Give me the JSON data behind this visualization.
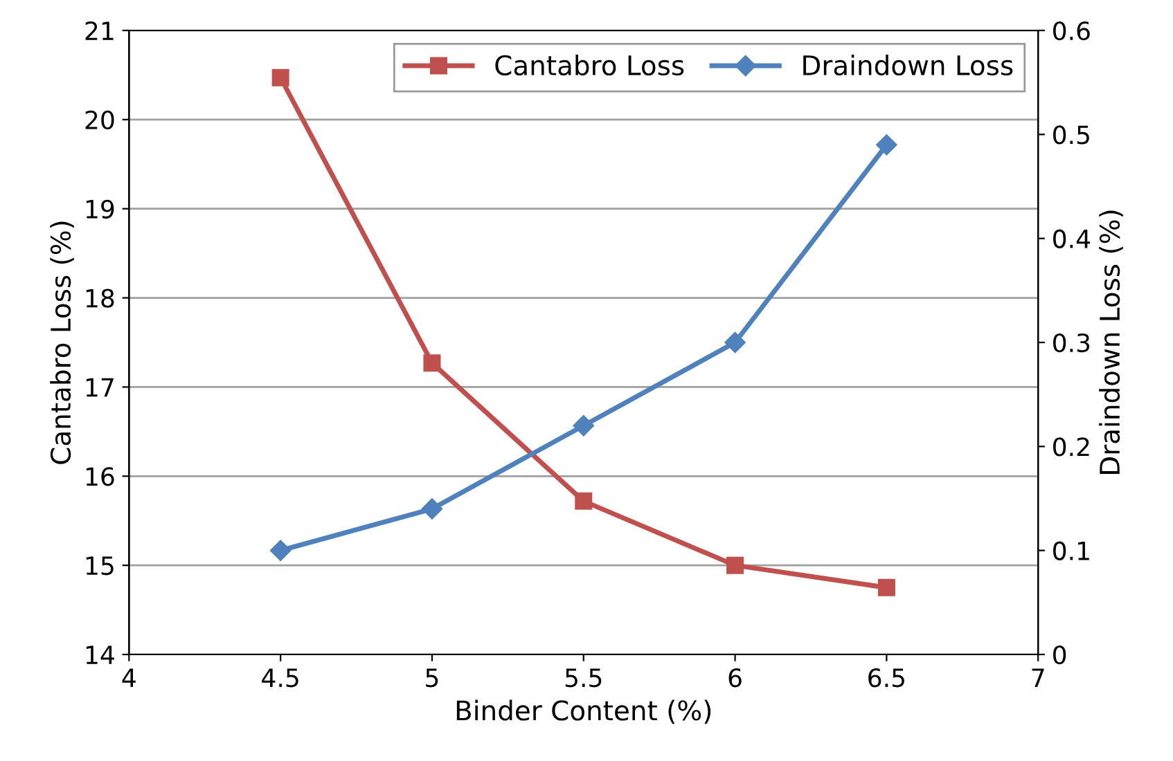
{
  "chart_data": {
    "type": "line",
    "xlabel": "Binder Content (%)",
    "ylabel": "Cantabro Loss (%)",
    "y2label": "Draindown Loss (%)",
    "x": [
      4.5,
      5,
      5.5,
      6,
      6.5
    ],
    "series": [
      {
        "name": "Cantabro Loss",
        "color": "#c0504d",
        "marker": "square",
        "values": [
          20.47,
          17.27,
          15.72,
          15.0,
          14.75
        ]
      },
      {
        "name": "Draindown Loss",
        "color": "#4f81bd",
        "marker": "diamond",
        "axis": "y2",
        "values": [
          0.1,
          0.14,
          0.22,
          0.3,
          0.49
        ]
      }
    ],
    "xlim": [
      4,
      7
    ],
    "xticks": [
      4,
      4.5,
      5,
      5.5,
      6,
      6.5,
      7
    ],
    "ylim": [
      14,
      21
    ],
    "yticks": [
      14,
      15,
      16,
      17,
      18,
      19,
      20,
      21
    ],
    "y2lim": [
      0,
      0.6
    ],
    "y2ticks": [
      0,
      0.1,
      0.2,
      0.3,
      0.4,
      0.5,
      0.6
    ],
    "grid": "y",
    "legend": "top right"
  }
}
